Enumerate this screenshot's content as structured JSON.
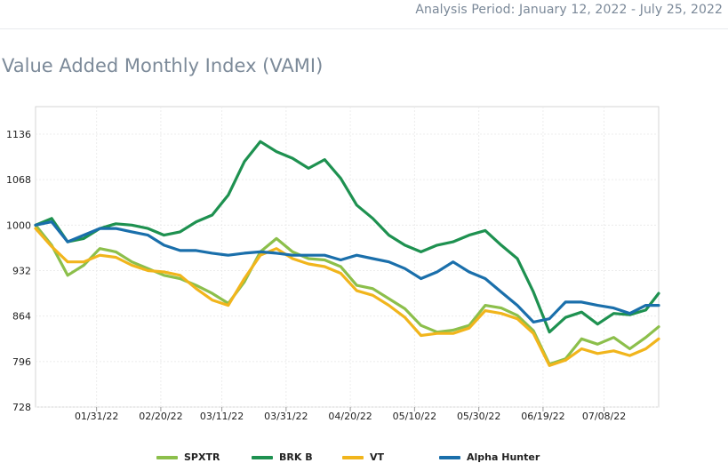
{
  "header": {
    "period_text": "Analysis Period: January 12, 2022 - July 25, 2022"
  },
  "page_title": "Value Added Monthly Index (VAMI)",
  "chart_data": {
    "type": "line",
    "title": "Value Added Monthly Index (VAMI)",
    "xlabel": "",
    "ylabel": "",
    "ylim": [
      728,
      1136
    ],
    "yticks": [
      728,
      796,
      864,
      932,
      1000,
      1068,
      1136
    ],
    "xticks": [
      "01/31/22",
      "02/20/22",
      "03/11/22",
      "03/31/22",
      "04/20/22",
      "05/10/22",
      "05/30/22",
      "06/19/22",
      "07/08/22"
    ],
    "grid": true,
    "legend_position": "bottom",
    "x": [
      "2022-01-12",
      "2022-01-17",
      "2022-01-22",
      "2022-01-27",
      "2022-02-01",
      "2022-02-06",
      "2022-02-11",
      "2022-02-16",
      "2022-02-21",
      "2022-02-26",
      "2022-03-03",
      "2022-03-08",
      "2022-03-13",
      "2022-03-18",
      "2022-03-23",
      "2022-03-28",
      "2022-04-02",
      "2022-04-07",
      "2022-04-12",
      "2022-04-17",
      "2022-04-22",
      "2022-04-27",
      "2022-05-02",
      "2022-05-07",
      "2022-05-12",
      "2022-05-17",
      "2022-05-22",
      "2022-05-27",
      "2022-06-01",
      "2022-06-06",
      "2022-06-11",
      "2022-06-16",
      "2022-06-21",
      "2022-06-26",
      "2022-07-01",
      "2022-07-06",
      "2022-07-11",
      "2022-07-16",
      "2022-07-21",
      "2022-07-25"
    ],
    "series": [
      {
        "name": "SPXTR",
        "color": "#8cbf4b",
        "values": [
          1000,
          970,
          925,
          940,
          965,
          960,
          945,
          935,
          925,
          920,
          910,
          898,
          883,
          915,
          960,
          980,
          960,
          950,
          948,
          938,
          910,
          905,
          890,
          875,
          850,
          840,
          843,
          850,
          880,
          876,
          865,
          842,
          792,
          800,
          830,
          822,
          832,
          815,
          832,
          848
        ]
      },
      {
        "name": "BRK B",
        "color": "#1e9150",
        "values": [
          1000,
          1010,
          975,
          980,
          995,
          1002,
          1000,
          995,
          985,
          990,
          1005,
          1015,
          1045,
          1095,
          1125,
          1110,
          1100,
          1085,
          1098,
          1070,
          1030,
          1010,
          985,
          970,
          960,
          970,
          975,
          985,
          992,
          970,
          950,
          900,
          840,
          862,
          870,
          852,
          868,
          866,
          873,
          898
        ]
      },
      {
        "name": "VT",
        "color": "#f1b51c",
        "values": [
          995,
          968,
          945,
          945,
          955,
          952,
          940,
          932,
          930,
          925,
          905,
          888,
          880,
          920,
          955,
          965,
          950,
          942,
          938,
          928,
          902,
          895,
          880,
          862,
          835,
          838,
          838,
          846,
          872,
          868,
          860,
          838,
          790,
          798,
          815,
          808,
          812,
          805,
          815,
          830
        ]
      },
      {
        "name": "Alpha Hunter",
        "color": "#1a6fab",
        "values": [
          1000,
          1005,
          975,
          985,
          995,
          995,
          990,
          985,
          970,
          962,
          962,
          958,
          955,
          958,
          960,
          958,
          955,
          955,
          955,
          948,
          955,
          950,
          945,
          935,
          920,
          930,
          945,
          930,
          920,
          900,
          880,
          855,
          860,
          885,
          885,
          880,
          876,
          868,
          880,
          880
        ]
      }
    ]
  }
}
